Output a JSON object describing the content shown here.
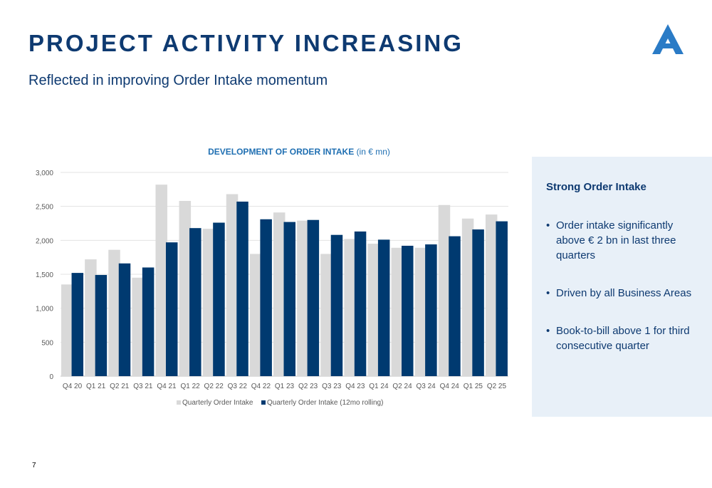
{
  "slide": {
    "title": "PROJECT ACTIVITY INCREASING",
    "subtitle": "Reflected in improving Order Intake momentum",
    "page_number": "7",
    "logo_icon": "company-triangle-logo"
  },
  "colors": {
    "primary": "#0e3a71",
    "accent": "#1f6fb2",
    "quarterly_bar": "#d9d9d9",
    "rolling_bar": "#003a70",
    "panel_bg": "#e8f0f8"
  },
  "chart_data": {
    "type": "bar",
    "title": "DEVELOPMENT OF ORDER INTAKE",
    "title_unit": "(in € mn)",
    "categories": [
      "Q4 20",
      "Q1 21",
      "Q2 21",
      "Q3 21",
      "Q4 21",
      "Q1 22",
      "Q2 22",
      "Q3 22",
      "Q4 22",
      "Q1 23",
      "Q2 23",
      "Q3 23",
      "Q4 23",
      "Q1 24",
      "Q2 24",
      "Q3 24",
      "Q4 24",
      "Q1 25",
      "Q2 25"
    ],
    "series": [
      {
        "name": "Quarterly Order Intake",
        "color": "#d9d9d9",
        "values": [
          1350,
          1720,
          1860,
          1450,
          2820,
          2580,
          2170,
          2680,
          1800,
          2410,
          2290,
          1800,
          2020,
          1950,
          1890,
          1890,
          2520,
          2320,
          2380
        ]
      },
      {
        "name": "Quarterly Order Intake (12mo rolling)",
        "color": "#003a70",
        "values": [
          1520,
          1490,
          1660,
          1600,
          1970,
          2180,
          2260,
          2570,
          2310,
          2270,
          2300,
          2080,
          2130,
          2010,
          1920,
          1940,
          2060,
          2160,
          2280
        ]
      }
    ],
    "y_ticks": [
      "0",
      "500",
      "1,000",
      "1,500",
      "2,000",
      "2,500",
      "3,000"
    ],
    "ylim": [
      0,
      3000
    ],
    "grid": true,
    "legend_position": "bottom"
  },
  "panel": {
    "heading": "Strong Order Intake",
    "bullets": [
      "Order intake significantly above € 2 bn in last three quarters",
      "Driven by all Business Areas",
      "Book-to-bill above 1 for third consecutive quarter"
    ]
  }
}
